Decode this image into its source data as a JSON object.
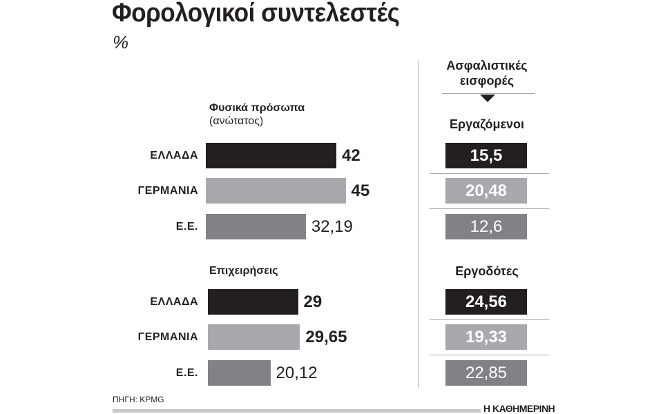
{
  "chart_data": [
    {
      "type": "bar",
      "title": "Φορολογικοί συντελεστές",
      "subtitle": "%",
      "groups": [
        {
          "name": "Φυσικά πρόσωπα",
          "note": "(ανώτατος)",
          "categories": [
            "ΕΛΛΑΔΑ",
            "ΓΕΡΜΑΝΙΑ",
            "Ε.Ε."
          ],
          "values": [
            42,
            45,
            32.19
          ],
          "labels": [
            "42",
            "45",
            "32,19"
          ]
        },
        {
          "name": "Επιχειρήσεις",
          "note": "",
          "categories": [
            "ΕΛΛΑΔΑ",
            "ΓΕΡΜΑΝΙΑ",
            "Ε.Ε."
          ],
          "values": [
            29,
            29.65,
            20.12
          ],
          "labels": [
            "29",
            "29,65",
            "20,12"
          ]
        }
      ]
    },
    {
      "type": "table",
      "title": "Ασφαλιστικές εισφορές",
      "groups": [
        {
          "name": "Εργαζόμενοι",
          "categories": [
            "ΕΛΛΑΔΑ",
            "ΓΕΡΜΑΝΙΑ",
            "Ε.Ε."
          ],
          "values": [
            15.5,
            20.48,
            12.6
          ],
          "labels": [
            "15,5",
            "20,48",
            "12,6"
          ]
        },
        {
          "name": "Εργοδότες",
          "categories": [
            "ΕΛΛΑΔΑ",
            "ΓΕΡΜΑΝΙΑ",
            "Ε.Ε."
          ],
          "values": [
            24.56,
            19.33,
            22.85
          ],
          "labels": [
            "24,56",
            "19,33",
            "22,85"
          ]
        }
      ]
    }
  ],
  "header": {
    "title": "Φορολογικοί συντελεστές",
    "unit": "%",
    "right_title_line1": "Ασφαλιστικές",
    "right_title_line2": "εισφορές"
  },
  "footer": {
    "source": "ΠΗΓΗ: KPMG",
    "brand": "Η ΚΑΘΗΜΕΡΙΝΗ"
  },
  "colors": {
    "ΕΛΛΑΔΑ": "#231f20",
    "ΓΕΡΜΑΝΙΑ": "#a7a9ac",
    "Ε.Ε.": "#808285"
  }
}
